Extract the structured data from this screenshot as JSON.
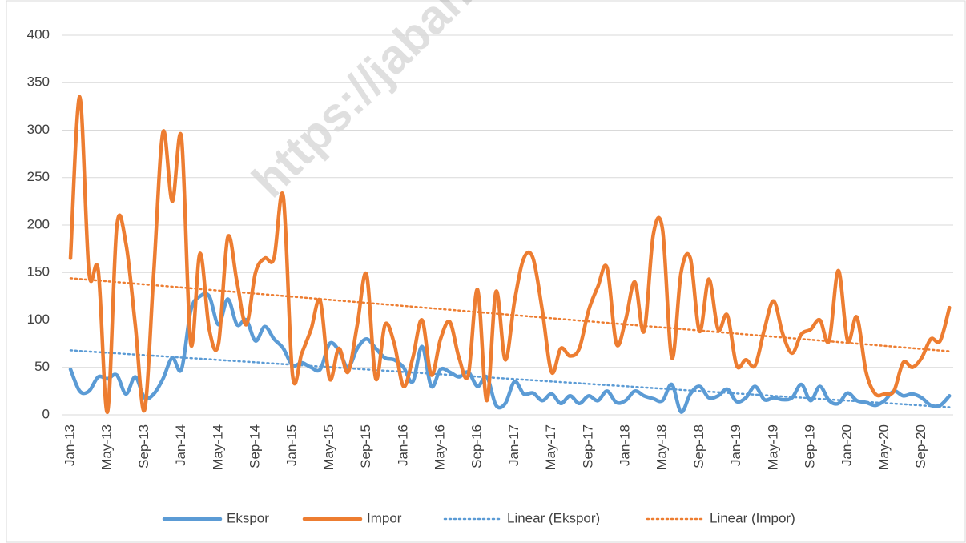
{
  "chart_data": {
    "type": "line",
    "watermark": "https://jabar.",
    "categories": [
      "Jan-13",
      null,
      null,
      null,
      "May-13",
      null,
      null,
      null,
      "Sep-13",
      null,
      null,
      null,
      "Jan-14",
      null,
      null,
      null,
      "May-14",
      null,
      null,
      null,
      "Sep-14",
      null,
      null,
      null,
      "Jan-15",
      null,
      null,
      null,
      "May-15",
      null,
      null,
      null,
      "Sep-15",
      null,
      null,
      null,
      "Jan-16",
      null,
      null,
      null,
      "May-16",
      null,
      null,
      null,
      "Sep-16",
      null,
      null,
      null,
      "Jan-17",
      null,
      null,
      null,
      "May-17",
      null,
      null,
      null,
      "Sep-17",
      null,
      null,
      null,
      "Jan-18",
      null,
      null,
      null,
      "May-18",
      null,
      null,
      null,
      "Sep-18",
      null,
      null,
      null,
      "Jan-19",
      null,
      null,
      null,
      "May-19",
      null,
      null,
      null,
      "Sep-19",
      null,
      null,
      null,
      "Jan-20",
      null,
      null,
      null,
      "May-20",
      null,
      null,
      null,
      "Sep-20",
      null,
      null,
      null
    ],
    "series": [
      {
        "name": "Ekspor",
        "color": "#5b9bd5",
        "values": [
          48,
          25,
          25,
          40,
          38,
          42,
          22,
          40,
          18,
          22,
          38,
          60,
          48,
          110,
          125,
          125,
          95,
          122,
          95,
          100,
          78,
          93,
          80,
          70,
          52,
          55,
          50,
          48,
          75,
          68,
          50,
          70,
          80,
          70,
          60,
          58,
          50,
          35,
          72,
          30,
          48,
          45,
          40,
          45,
          30,
          40,
          10,
          12,
          35,
          22,
          23,
          15,
          22,
          12,
          20,
          12,
          20,
          15,
          25,
          13,
          15,
          25,
          20,
          17,
          15,
          32,
          3,
          22,
          30,
          18,
          20,
          27,
          14,
          18,
          30,
          16,
          18,
          16,
          18,
          32,
          15,
          30,
          15,
          12,
          23,
          15,
          13,
          10,
          15,
          25,
          20,
          22,
          18,
          10,
          10,
          20
        ]
      },
      {
        "name": "Impor",
        "color": "#ed7d31",
        "values": [
          165,
          335,
          150,
          152,
          3,
          198,
          180,
          95,
          5,
          150,
          298,
          225,
          292,
          75,
          170,
          90,
          75,
          187,
          140,
          95,
          150,
          165,
          165,
          230,
          42,
          65,
          90,
          120,
          38,
          70,
          45,
          95,
          148,
          38,
          95,
          75,
          30,
          60,
          100,
          42,
          80,
          98,
          60,
          42,
          132,
          15,
          130,
          58,
          120,
          165,
          165,
          110,
          45,
          70,
          62,
          70,
          110,
          135,
          155,
          75,
          100,
          140,
          88,
          190,
          195,
          60,
          150,
          165,
          88,
          143,
          90,
          105,
          52,
          58,
          52,
          90,
          120,
          85,
          65,
          85,
          90,
          100,
          78,
          152,
          78,
          103,
          45,
          22,
          22,
          25,
          55,
          50,
          60,
          80,
          78,
          113
        ]
      }
    ],
    "trendlines": [
      {
        "name": "Linear (Ekspor)",
        "color": "#5b9bd5",
        "values": [
          68,
          8
        ]
      },
      {
        "name": "Linear (Impor)",
        "color": "#ed7d31",
        "values": [
          144,
          67
        ]
      }
    ],
    "ylim": [
      0,
      400
    ],
    "yticks": [
      0,
      50,
      100,
      150,
      200,
      250,
      300,
      350,
      400
    ],
    "grid": true,
    "legend": "bottom"
  }
}
